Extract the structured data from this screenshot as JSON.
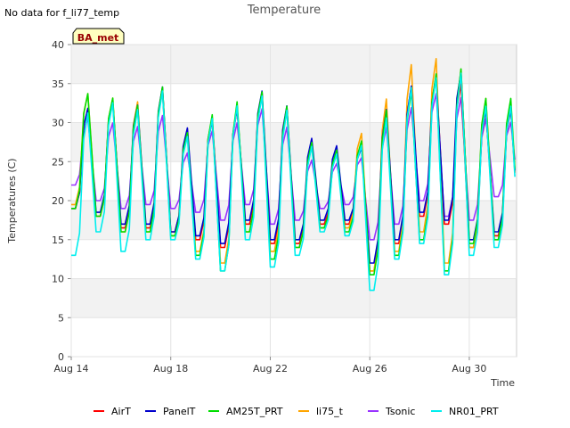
{
  "no_data_note": "No data for f_li77_temp",
  "badge": "BA_met",
  "colors": {
    "AirT": "#ff0000",
    "PanelT": "#0000cc",
    "AM25T_PRT": "#00dd00",
    "li75_t": "#ffa500",
    "Tsonic": "#9933ff",
    "NR01_PRT": "#00eeee"
  },
  "chart_data": {
    "type": "line",
    "title": "Temperature",
    "xlabel": "Time",
    "ylabel": "Temperatures (C)",
    "xlim": [
      "2023-08-14",
      "2023-08-31.9"
    ],
    "ylim": [
      0,
      40
    ],
    "yticks": [
      0,
      5,
      10,
      15,
      20,
      25,
      30,
      35,
      40
    ],
    "xticks": [
      "Aug 14",
      "Aug 18",
      "Aug 22",
      "Aug 26",
      "Aug 30"
    ],
    "xtick_dates": [
      "2023-08-14",
      "2023-08-18",
      "2023-08-22",
      "2023-08-26",
      "2023-08-30"
    ],
    "grid": true,
    "legend_position": "bottom",
    "x": [
      "2023-08-14",
      "2023-08-15",
      "2023-08-16",
      "2023-08-17",
      "2023-08-18",
      "2023-08-19",
      "2023-08-20",
      "2023-08-21",
      "2023-08-22",
      "2023-08-23",
      "2023-08-24",
      "2023-08-25",
      "2023-08-26",
      "2023-08-27",
      "2023-08-28",
      "2023-08-29",
      "2023-08-30",
      "2023-08-31"
    ],
    "series": [
      {
        "name": "AirT",
        "min": [
          19.0,
          18.0,
          16.5,
          16.5,
          16.0,
          15.0,
          14.0,
          17.0,
          14.5,
          14.5,
          17.0,
          17.0,
          11.0,
          14.5,
          18.0,
          17.0,
          14.0,
          15.5
        ],
        "max": [
          32.5,
          33.5,
          32.5,
          35.0,
          29.5,
          31.5,
          32.5,
          34.5,
          32.5,
          27.5,
          26.5,
          28.0,
          32.5,
          35.5,
          37.0,
          36.0,
          32.5,
          32.5
        ]
      },
      {
        "name": "PanelT",
        "min": [
          19.0,
          18.5,
          17.0,
          17.0,
          16.0,
          15.5,
          14.5,
          17.5,
          15.0,
          15.0,
          17.5,
          17.5,
          12.0,
          15.0,
          18.5,
          17.5,
          15.0,
          16.0
        ],
        "max": [
          32.5,
          33.5,
          33.0,
          35.5,
          30.0,
          31.0,
          32.5,
          35.0,
          33.0,
          28.5,
          27.5,
          27.5,
          32.5,
          35.5,
          36.5,
          37.5,
          32.5,
          32.5
        ]
      },
      {
        "name": "AM25T_PRT",
        "min": [
          19.0,
          18.0,
          16.0,
          16.0,
          15.5,
          13.0,
          11.0,
          16.0,
          12.5,
          14.0,
          16.5,
          16.0,
          10.5,
          13.0,
          15.0,
          11.0,
          14.5,
          15.0
        ],
        "max": [
          34.5,
          34.0,
          33.0,
          35.5,
          29.5,
          32.0,
          33.5,
          35.0,
          33.0,
          28.0,
          27.0,
          28.5,
          32.5,
          35.0,
          37.5,
          38.0,
          34.0,
          34.0
        ]
      },
      {
        "name": "li75_t",
        "min": [
          19.5,
          18.0,
          16.0,
          16.0,
          15.5,
          13.5,
          12.0,
          16.0,
          13.5,
          14.0,
          16.5,
          16.5,
          11.0,
          13.5,
          16.0,
          12.0,
          14.0,
          15.0
        ],
        "max": [
          34.5,
          34.0,
          33.5,
          35.5,
          30.0,
          31.5,
          33.0,
          35.0,
          33.0,
          28.0,
          26.5,
          29.5,
          34.0,
          38.5,
          39.5,
          38.0,
          34.0,
          33.0
        ]
      },
      {
        "name": "Tsonic",
        "min": [
          22.0,
          20.0,
          19.0,
          19.5,
          19.0,
          18.5,
          17.5,
          19.5,
          17.0,
          17.5,
          19.0,
          19.5,
          15.0,
          17.0,
          20.0,
          18.0,
          17.5,
          20.5
        ],
        "max": [
          31.0,
          30.5,
          30.0,
          31.5,
          26.5,
          29.5,
          30.5,
          32.5,
          30.0,
          25.5,
          25.0,
          26.0,
          30.0,
          32.5,
          34.5,
          34.0,
          31.0,
          30.5
        ]
      },
      {
        "name": "NR01_PRT",
        "min": [
          13.0,
          16.0,
          13.5,
          15.0,
          15.0,
          12.5,
          11.0,
          15.0,
          11.5,
          13.0,
          16.0,
          15.5,
          8.5,
          12.5,
          14.5,
          10.5,
          13.0,
          14.0
        ],
        "max": [
          32.0,
          33.5,
          32.5,
          35.0,
          29.0,
          31.5,
          33.0,
          34.5,
          32.5,
          27.5,
          26.5,
          28.0,
          31.5,
          35.5,
          37.0,
          37.5,
          33.0,
          33.0
        ]
      }
    ]
  }
}
